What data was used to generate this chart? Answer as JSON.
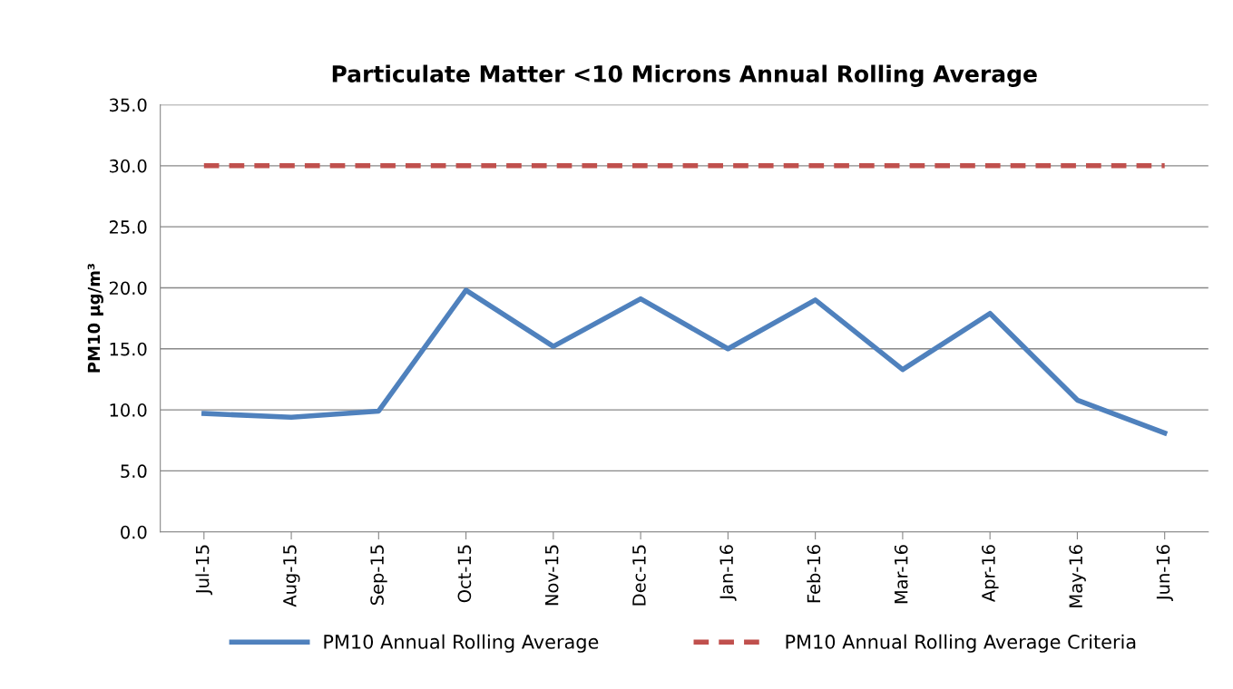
{
  "chart_data": {
    "type": "line",
    "title": "Particulate Matter <10 Microns Annual Rolling Average",
    "ylabel": "PM10 µg/m³",
    "categories": [
      "Jul-15",
      "Aug-15",
      "Sep-15",
      "Oct-15",
      "Nov-15",
      "Dec-15",
      "Jan-16",
      "Feb-16",
      "Mar-16",
      "Apr-16",
      "May-16",
      "Jun-16"
    ],
    "series": [
      {
        "name": "PM10 Annual Rolling Average",
        "color": "#4f81bd",
        "line_style": "solid",
        "values": [
          9.7,
          9.4,
          9.9,
          19.8,
          15.2,
          19.1,
          15.0,
          19.0,
          13.3,
          17.9,
          10.8,
          8.1
        ]
      },
      {
        "name": "PM10 Annual Rolling Average Criteria",
        "color": "#c0504d",
        "line_style": "dashed",
        "values": [
          30,
          30,
          30,
          30,
          30,
          30,
          30,
          30,
          30,
          30,
          30,
          30
        ]
      }
    ],
    "ylim": [
      0,
      35
    ],
    "yticks": [
      {
        "value": 0,
        "label": "0.0"
      },
      {
        "value": 5,
        "label": "5.0"
      },
      {
        "value": 10,
        "label": "10.0"
      },
      {
        "value": 15,
        "label": "15.0"
      },
      {
        "value": 20,
        "label": "20.0"
      },
      {
        "value": 25,
        "label": "25.0"
      },
      {
        "value": 30,
        "label": "30.0"
      },
      {
        "value": 35,
        "label": "35.0"
      }
    ],
    "grid": "y",
    "legend": "bottom",
    "marker": "none"
  }
}
